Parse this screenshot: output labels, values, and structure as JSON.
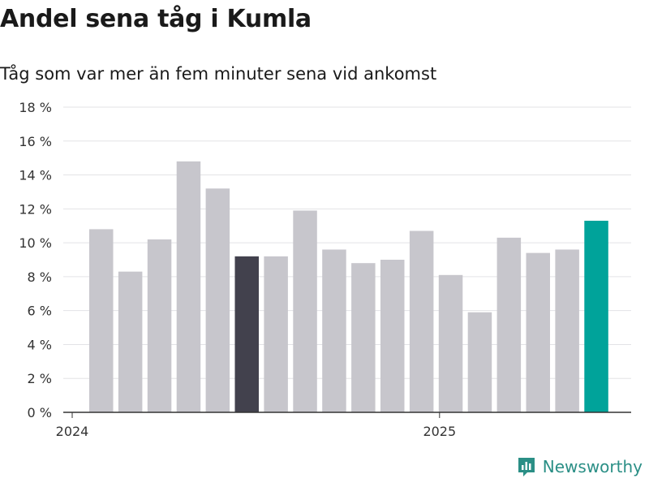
{
  "title": "Andel sena tåg i Kumla",
  "subtitle": "Tåg som var mer än fem minuter sena vid ankomst",
  "brand": "Newsworthy",
  "chart_data": {
    "type": "bar",
    "categories": [
      "2024-01",
      "2024-02",
      "2024-03",
      "2024-04",
      "2024-05",
      "2024-06",
      "2024-07",
      "2024-08",
      "2024-09",
      "2024-10",
      "2024-11",
      "2024-12",
      "2025-01",
      "2025-02",
      "2025-03",
      "2025-04",
      "2025-05",
      "2025-06"
    ],
    "values": [
      10.8,
      8.3,
      10.2,
      14.8,
      13.2,
      9.2,
      9.2,
      11.9,
      9.6,
      8.8,
      9.0,
      10.7,
      8.1,
      5.9,
      10.3,
      9.4,
      9.6,
      11.3
    ],
    "highlight": {
      "5": "#42414d",
      "17": "#00a39a"
    },
    "bar_color": "#c7c6cc",
    "ylim": [
      0,
      18
    ],
    "yticks": [
      0,
      2,
      4,
      6,
      8,
      10,
      12,
      14,
      16,
      18
    ],
    "ytick_suffix": " %",
    "xtick_labels": [
      {
        "index": 0,
        "label": "2024"
      },
      {
        "index": 12,
        "label": "2025"
      }
    ],
    "grid": true
  }
}
